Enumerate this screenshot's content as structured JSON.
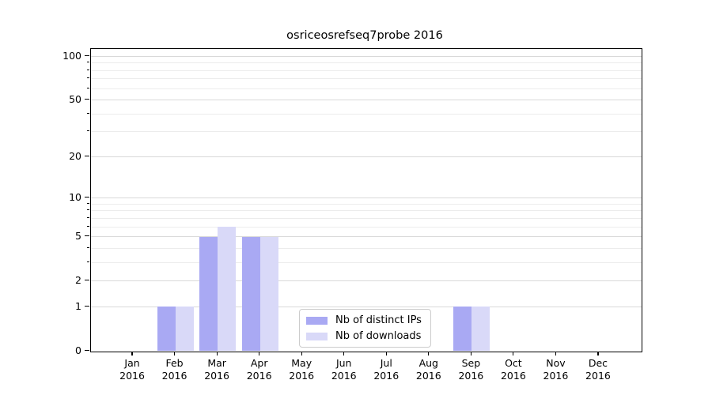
{
  "chart_data": {
    "type": "bar",
    "title": "osriceosrefseq7probe 2016",
    "categories": [
      "Jan",
      "Feb",
      "Mar",
      "Apr",
      "May",
      "Jun",
      "Jul",
      "Aug",
      "Sep",
      "Oct",
      "Nov",
      "Dec"
    ],
    "x_tick_year": "2016",
    "series": [
      {
        "name": "Nb of distinct IPs",
        "color": "#a9a9f3",
        "values": [
          0,
          1,
          5,
          5,
          0,
          0,
          0,
          0,
          1,
          0,
          0,
          0
        ]
      },
      {
        "name": "Nb of downloads",
        "color": "#d9d9f8",
        "values": [
          0,
          1,
          6,
          5,
          0,
          0,
          0,
          0,
          1,
          0,
          0,
          0
        ]
      }
    ],
    "y_scale": "log1p",
    "ylim": [
      0,
      113
    ],
    "y_major_ticks": [
      0,
      1,
      2,
      5,
      10,
      20,
      50,
      100
    ],
    "y_minor_ticks": [
      3,
      4,
      6,
      7,
      8,
      9,
      30,
      40,
      60,
      70,
      80,
      90
    ],
    "grid": true,
    "legend_position": "bottom-center-inside",
    "colors": {
      "major_grid": "#d9d9d9",
      "minor_grid": "#ececec",
      "spine": "#000000",
      "background": "#ffffff"
    }
  }
}
